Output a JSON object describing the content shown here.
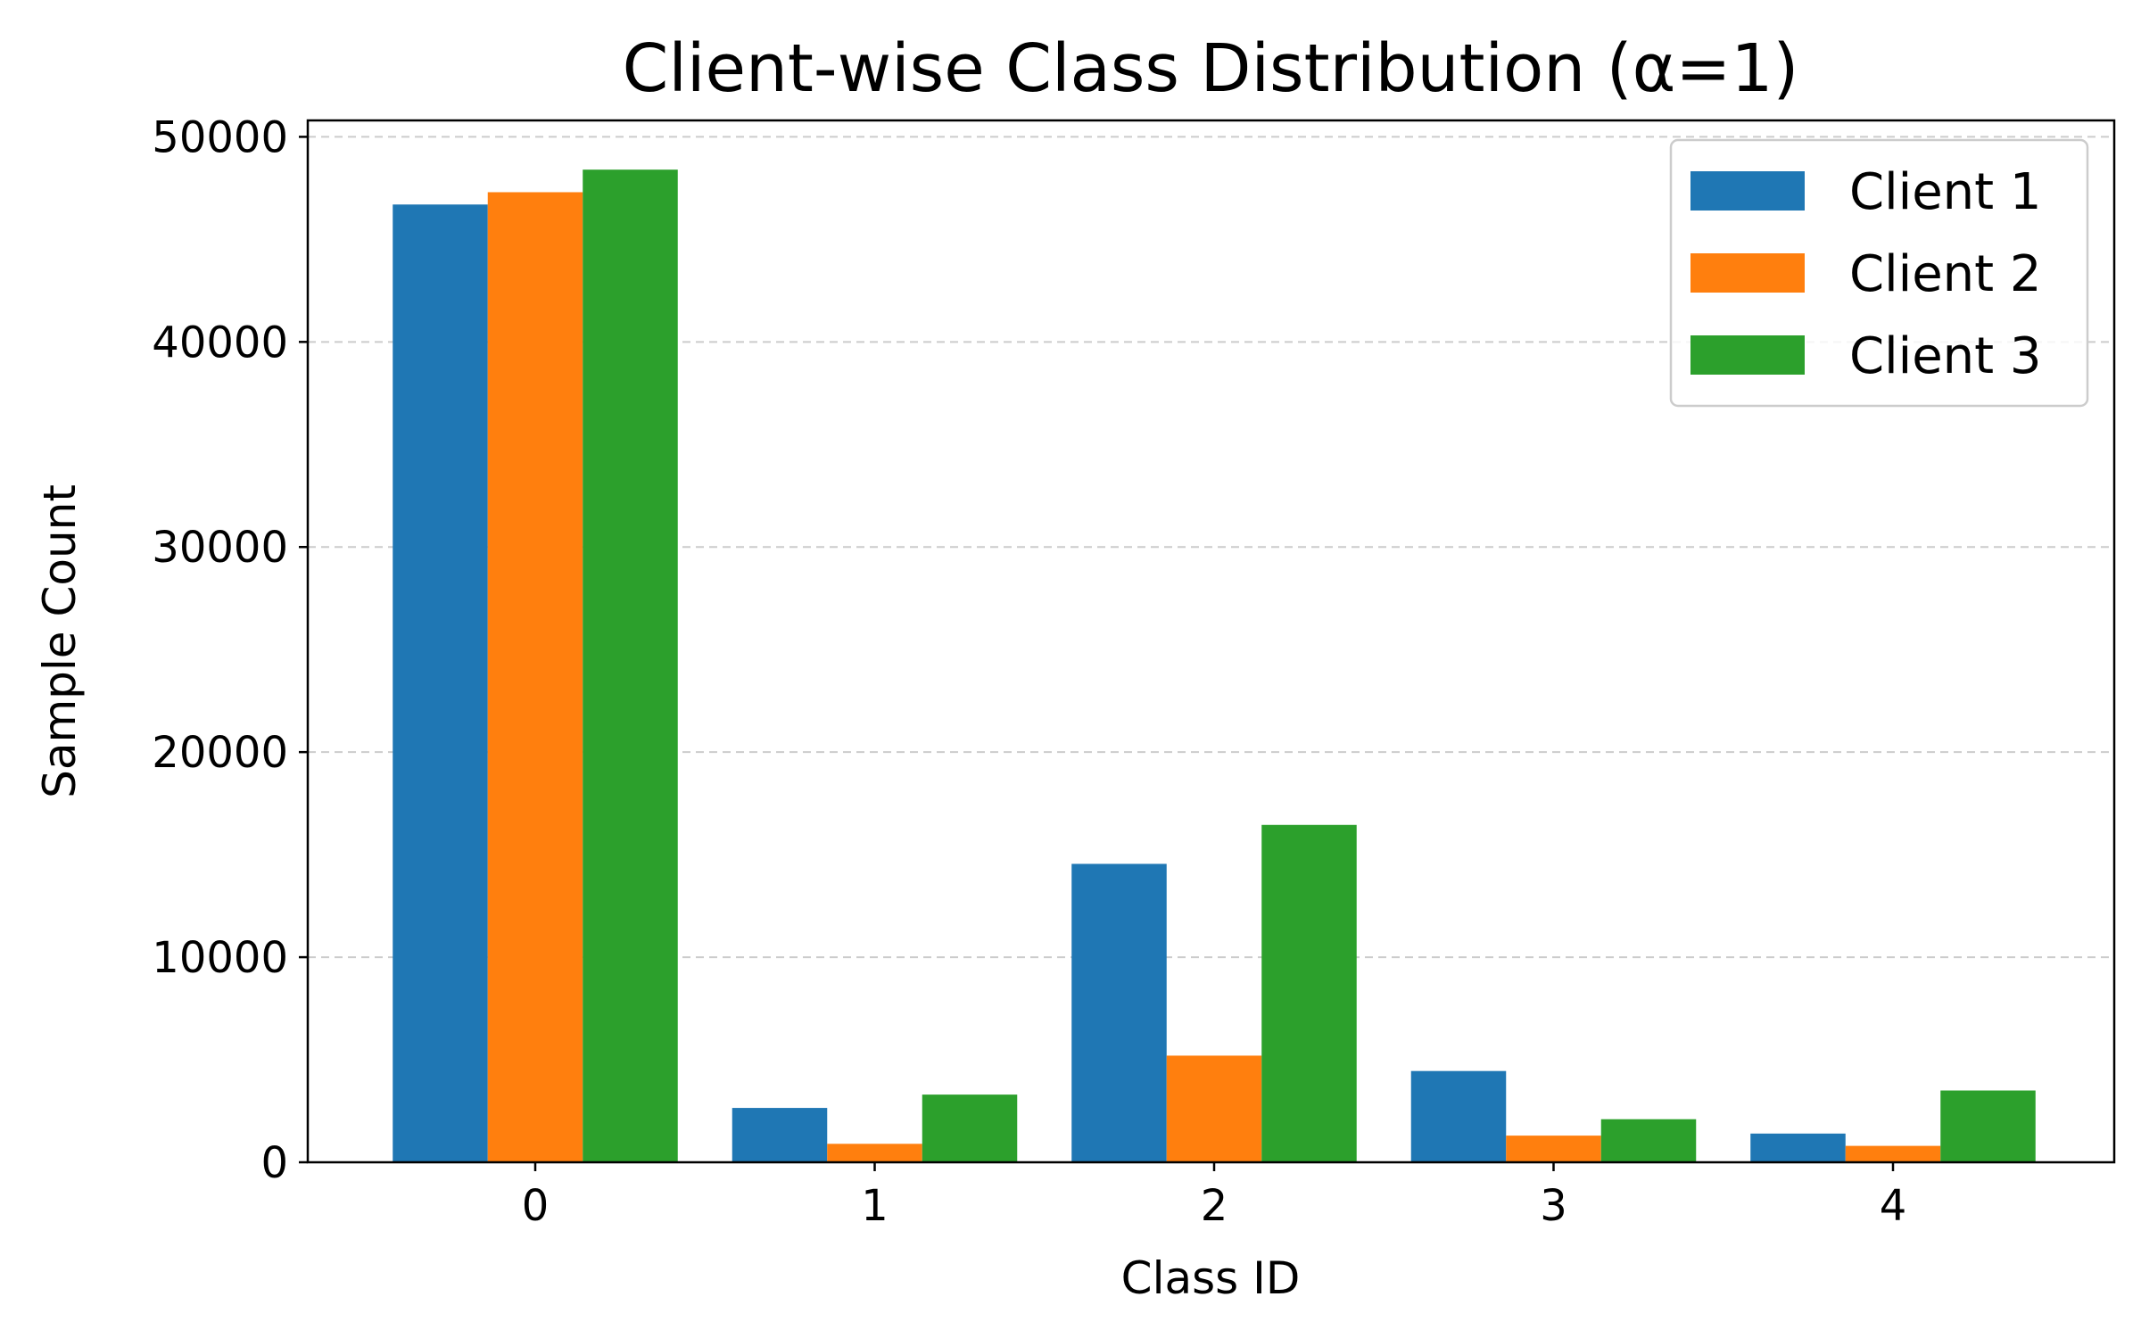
{
  "chart_data": {
    "type": "bar",
    "title": "Client-wise Class Distribution (α=1)",
    "xlabel": "Class ID",
    "ylabel": "Sample Count",
    "categories": [
      "0",
      "1",
      "2",
      "3",
      "4"
    ],
    "series": [
      {
        "name": "Client 1",
        "color": "#1f77b4",
        "values": [
          46700,
          2650,
          14550,
          4450,
          1400
        ]
      },
      {
        "name": "Client 2",
        "color": "#ff7f0e",
        "values": [
          47300,
          900,
          5200,
          1300,
          800
        ]
      },
      {
        "name": "Client 3",
        "color": "#2ca02c",
        "values": [
          48400,
          3300,
          16450,
          2100,
          3500
        ]
      }
    ],
    "ylim": [
      0,
      50800
    ],
    "yticks": [
      0,
      10000,
      20000,
      30000,
      40000,
      50000
    ],
    "ytick_labels": [
      "0",
      "10000",
      "20000",
      "30000",
      "40000",
      "50000"
    ],
    "grid": "y-dashed",
    "legend": "top-right"
  }
}
